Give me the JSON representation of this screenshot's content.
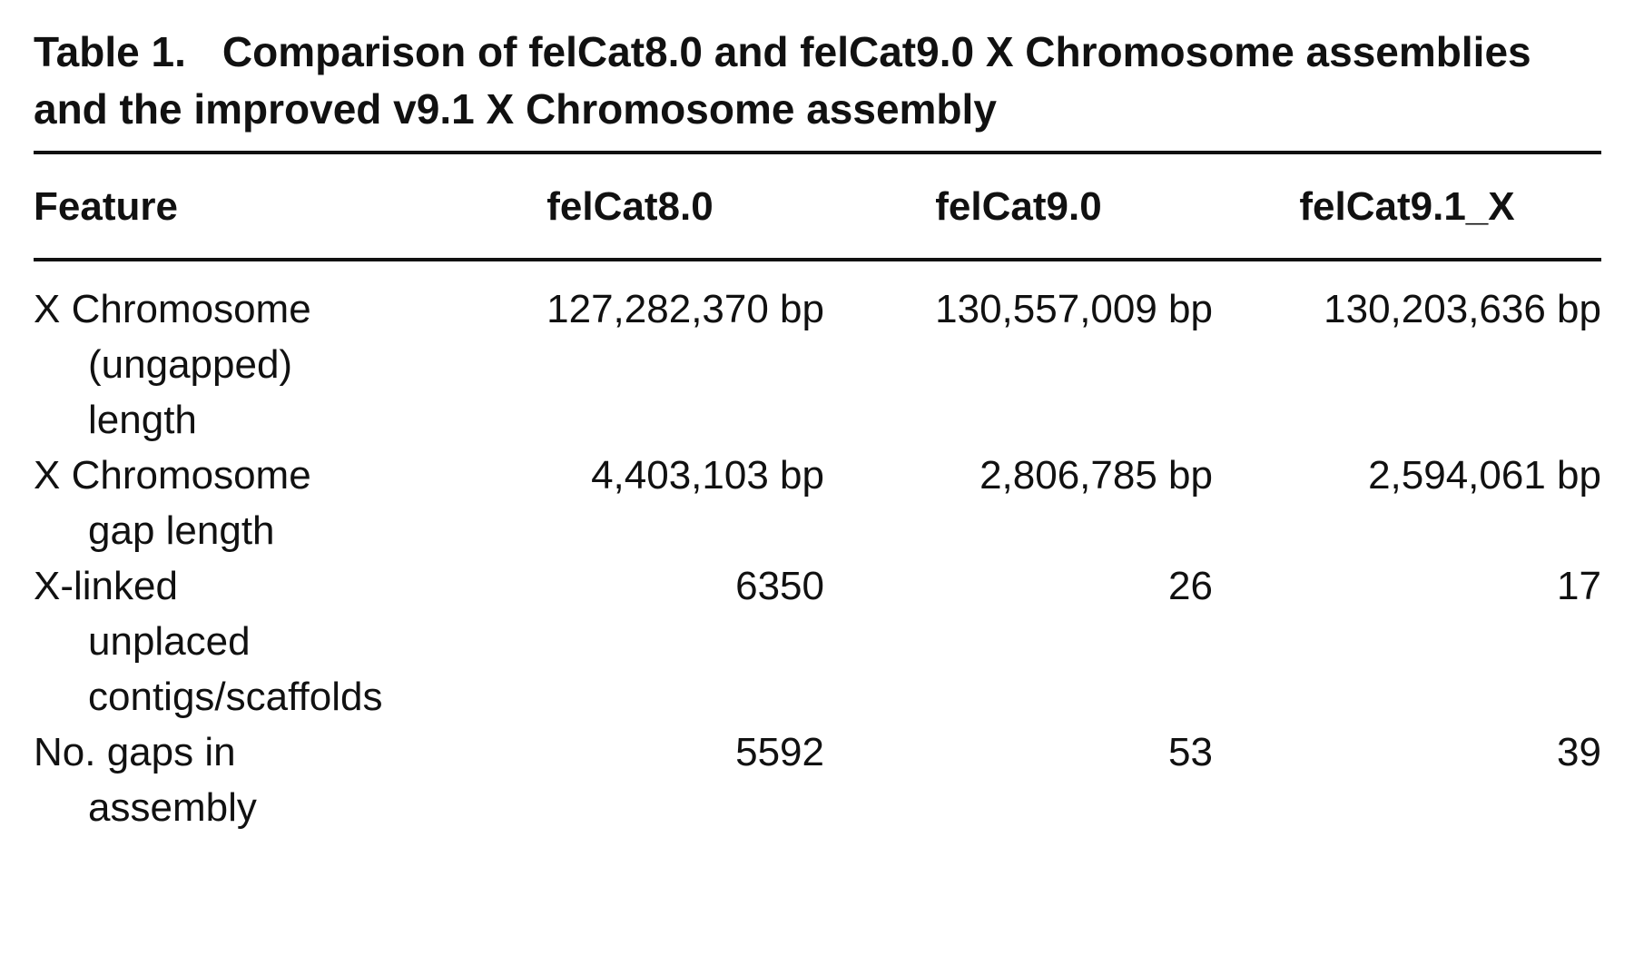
{
  "table_title": {
    "label": "Table 1.",
    "text": "Comparison of felCat8.0 and felCat9.0 X Chromosome assemblies and the improved v9.1 X Chromosome assembly"
  },
  "table": {
    "header": [
      "Feature",
      "felCat8.0",
      "felCat9.0",
      "felCat9.1_X"
    ],
    "rows": [
      [
        "X Chromosome (ungapped) length",
        "127,282,370 bp",
        "130,557,009 bp",
        "130,203,636 bp"
      ],
      [
        "X Chromosome gap length",
        "4,403,103 bp",
        "2,806,785 bp",
        "2,594,061 bp"
      ],
      [
        "X-linked unplaced contigs/scaffolds",
        "6350",
        "26",
        "17"
      ],
      [
        "No. gaps in assembly",
        "5592",
        "53",
        "39"
      ]
    ]
  }
}
